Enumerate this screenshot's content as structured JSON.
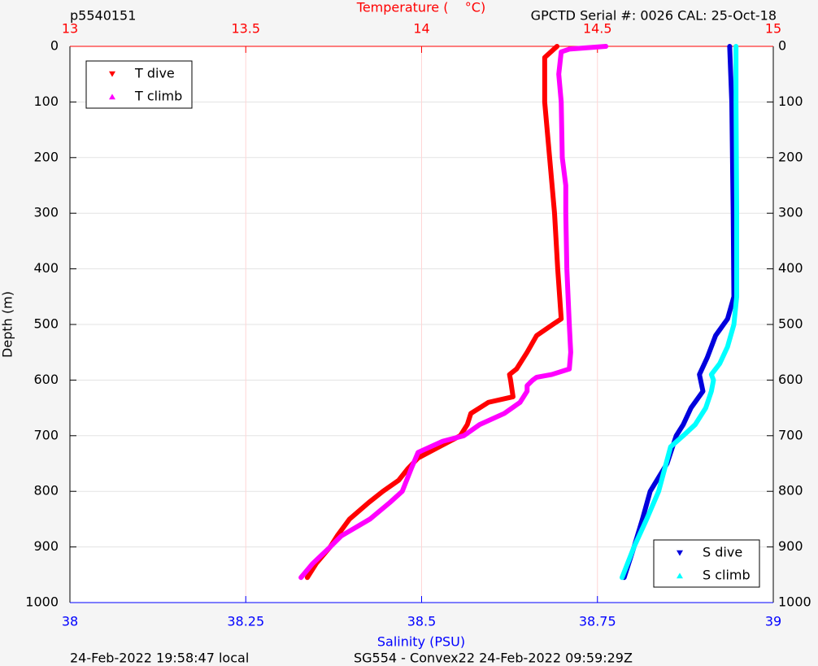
{
  "chart_data": {
    "type": "profile",
    "title_left": "p5540151",
    "title_right": "GPCTD Serial #: 0026 CAL: 25-Oct-18",
    "x2label": "Temperature (    °C)",
    "xlabel": "Salinity (PSU)",
    "ylabel": "Depth (m)",
    "footer_left": "24-Feb-2022 19:58:47 local",
    "footer_right": "SG554 - Convex22 24-Feb-2022 09:59:29Z",
    "xlim": [
      38,
      39
    ],
    "xticks": [
      38,
      38.25,
      38.5,
      38.75,
      39
    ],
    "x2lim": [
      13,
      15
    ],
    "x2ticks": [
      13,
      13.5,
      14,
      14.5,
      15
    ],
    "ylim": [
      0,
      1000
    ],
    "y_reversed": true,
    "yticks": [
      0,
      100,
      200,
      300,
      400,
      500,
      600,
      700,
      800,
      900,
      1000
    ],
    "grid": true,
    "series": [
      {
        "name": "T dive",
        "color": "#ff0000",
        "marker": "down",
        "axis": "x2",
        "legend": "upper left",
        "x": [
          14.385,
          14.35,
          14.35,
          14.364,
          14.378,
          14.387,
          14.397,
          14.373,
          14.327,
          14.3,
          14.27,
          14.25,
          14.253,
          14.26,
          14.19,
          14.165,
          14.14,
          14.13,
          14.11,
          14.05,
          13.99,
          13.96,
          13.935,
          13.89,
          13.85,
          13.795,
          13.76,
          13.74,
          13.7,
          13.675
        ],
        "y": [
          0,
          20,
          100,
          200,
          300,
          400,
          490,
          500,
          520,
          550,
          580,
          590,
          600,
          630,
          640,
          650,
          660,
          680,
          700,
          720,
          740,
          760,
          780,
          800,
          820,
          850,
          880,
          900,
          930,
          955
        ]
      },
      {
        "name": "T climb",
        "color": "#ff00ff",
        "marker": "up",
        "axis": "x2",
        "legend": "upper left",
        "x": [
          14.524,
          14.42,
          14.397,
          14.39,
          14.397,
          14.4,
          14.41,
          14.41,
          14.413,
          14.42,
          14.424,
          14.42,
          14.37,
          14.327,
          14.316,
          14.3,
          14.3,
          14.28,
          14.235,
          14.165,
          14.12,
          14.06,
          13.99,
          13.97,
          13.945,
          13.91,
          13.853,
          13.772,
          13.74,
          13.69,
          13.657
        ],
        "y": [
          0,
          5,
          10,
          50,
          100,
          200,
          250,
          300,
          400,
          500,
          550,
          580,
          590,
          595,
          600,
          610,
          620,
          640,
          660,
          680,
          700,
          710,
          730,
          760,
          800,
          820,
          850,
          880,
          900,
          930,
          955
        ]
      },
      {
        "name": "S dive",
        "color": "#0000dd",
        "marker": "down",
        "axis": "x",
        "legend": "lower right",
        "x": [
          38.938,
          38.941,
          38.943,
          38.944,
          38.935,
          38.918,
          38.906,
          38.895,
          38.9,
          38.883,
          38.872,
          38.862,
          38.849,
          38.825,
          38.814,
          38.802,
          38.788
        ],
        "y": [
          0,
          100,
          300,
          450,
          490,
          520,
          560,
          590,
          620,
          650,
          680,
          700,
          750,
          800,
          850,
          900,
          955
        ]
      },
      {
        "name": "S climb",
        "color": "#00ffff",
        "marker": "up",
        "axis": "x",
        "legend": "lower right",
        "x": [
          38.947,
          38.947,
          38.948,
          38.948,
          38.944,
          38.935,
          38.924,
          38.912,
          38.915,
          38.912,
          38.904,
          38.889,
          38.872,
          38.854,
          38.837,
          38.82,
          38.802,
          38.785
        ],
        "y": [
          0,
          100,
          300,
          450,
          500,
          540,
          570,
          590,
          600,
          620,
          650,
          680,
          700,
          720,
          800,
          850,
          900,
          955
        ]
      }
    ]
  }
}
